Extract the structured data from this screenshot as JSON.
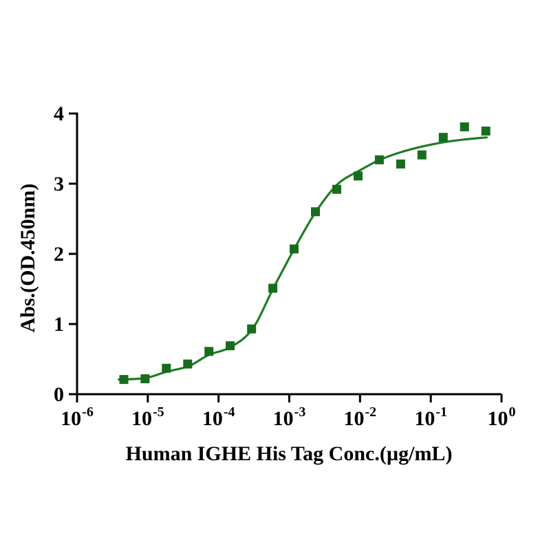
{
  "figure": {
    "background_color": "#ffffff",
    "axis_color": "#000000"
  },
  "chart_data": {
    "type": "scatter",
    "subtype": "sigmoidal-dose-response-ELISA",
    "title": "",
    "xlabel": "Human IGHE His Tag Conc.(µg/mL)",
    "ylabel": "Abs.(OD.450nm)",
    "x_scale": "log10",
    "xlim": [
      1e-06,
      1
    ],
    "x_tick_exponents": [
      -6,
      -5,
      -4,
      -3,
      -2,
      -1,
      0
    ],
    "x_tick_base": "10",
    "ylim": [
      0,
      4
    ],
    "yticks": [
      0,
      1,
      2,
      3,
      4
    ],
    "grid": "off",
    "legend": "none",
    "series": [
      {
        "name": "Human IGHE His Tag",
        "marker": "square",
        "marker_color": "#186c1e",
        "points": [
          {
            "x": 4.58e-06,
            "y": 0.21
          },
          {
            "x": 9.16e-06,
            "y": 0.22
          },
          {
            "x": 1.83e-05,
            "y": 0.37
          },
          {
            "x": 3.66e-05,
            "y": 0.43
          },
          {
            "x": 7.32e-05,
            "y": 0.61
          },
          {
            "x": 0.000146,
            "y": 0.69
          },
          {
            "x": 0.000293,
            "y": 0.93
          },
          {
            "x": 0.000586,
            "y": 1.51
          },
          {
            "x": 0.00117,
            "y": 2.07
          },
          {
            "x": 0.00234,
            "y": 2.6
          },
          {
            "x": 0.00469,
            "y": 2.92
          },
          {
            "x": 0.00938,
            "y": 3.11
          },
          {
            "x": 0.01875,
            "y": 3.34
          },
          {
            "x": 0.0375,
            "y": 3.28
          },
          {
            "x": 0.075,
            "y": 3.41
          },
          {
            "x": 0.15,
            "y": 3.66
          },
          {
            "x": 0.3,
            "y": 3.81
          },
          {
            "x": 0.6,
            "y": 3.75
          }
        ]
      }
    ],
    "fit_curve": {
      "model": "4PL sigmoidal fit",
      "color": "#1e7d23",
      "anchors_logx_y": [
        [
          -5.41,
          0.21
        ],
        [
          -5.03,
          0.23
        ],
        [
          -4.74,
          0.32
        ],
        [
          -4.42,
          0.4
        ],
        [
          -4.14,
          0.56
        ],
        [
          -3.83,
          0.67
        ],
        [
          -3.52,
          0.93
        ],
        [
          -3.23,
          1.5
        ],
        [
          -2.93,
          2.07
        ],
        [
          -2.63,
          2.59
        ],
        [
          -2.32,
          2.99
        ],
        [
          -2.02,
          3.18
        ],
        [
          -1.72,
          3.34
        ],
        [
          -1.42,
          3.45
        ],
        [
          -1.12,
          3.53
        ],
        [
          -0.82,
          3.59
        ],
        [
          -0.52,
          3.63
        ],
        [
          -0.21,
          3.66
        ]
      ]
    }
  }
}
